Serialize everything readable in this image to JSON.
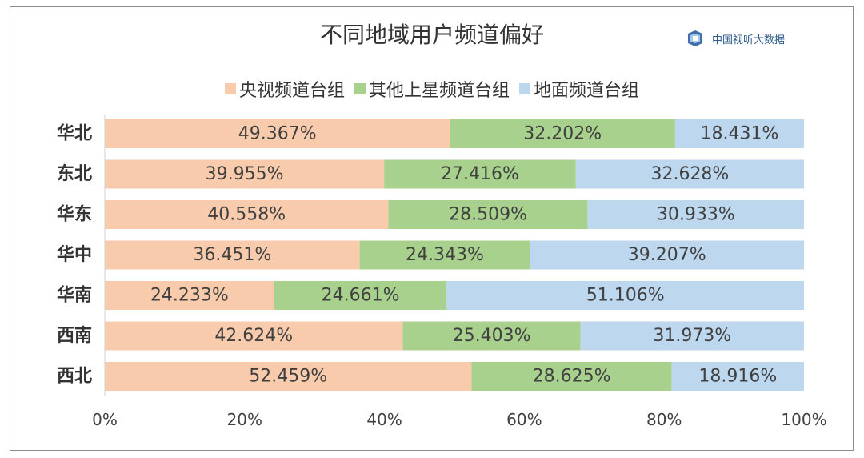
{
  "branding": {
    "logo_text": "中国视听大数据"
  },
  "chart_data": {
    "type": "bar",
    "orientation": "horizontal",
    "stacked": "percent",
    "title": "不同地域用户频道偏好",
    "categories": [
      "华北",
      "东北",
      "华东",
      "华中",
      "华南",
      "西南",
      "西北"
    ],
    "series": [
      {
        "name": "央视频道台组",
        "color": "#f8cbad",
        "values": [
          49.367,
          39.955,
          40.558,
          36.451,
          24.233,
          42.624,
          52.459
        ]
      },
      {
        "name": "其他上星频道台组",
        "color": "#a9d18e",
        "values": [
          32.202,
          27.416,
          28.509,
          24.343,
          24.661,
          25.403,
          28.625
        ]
      },
      {
        "name": "地面频道台组",
        "color": "#bdd7ee",
        "values": [
          18.431,
          32.628,
          30.933,
          39.207,
          51.106,
          31.973,
          18.916
        ]
      }
    ],
    "data_labels": [
      [
        "49.367%",
        "32.202%",
        "18.431%"
      ],
      [
        "39.955%",
        "27.416%",
        "32.628%"
      ],
      [
        "40.558%",
        "28.509%",
        "30.933%"
      ],
      [
        "36.451%",
        "24.343%",
        "39.207%"
      ],
      [
        "24.233%",
        "24.661%",
        "51.106%"
      ],
      [
        "42.624%",
        "25.403%",
        "31.973%"
      ],
      [
        "52.459%",
        "28.625%",
        "18.916%"
      ]
    ],
    "x_ticks": [
      "0%",
      "20%",
      "40%",
      "60%",
      "80%",
      "100%"
    ],
    "xlim": [
      0,
      100
    ],
    "grid": false,
    "legend_position": "top"
  }
}
